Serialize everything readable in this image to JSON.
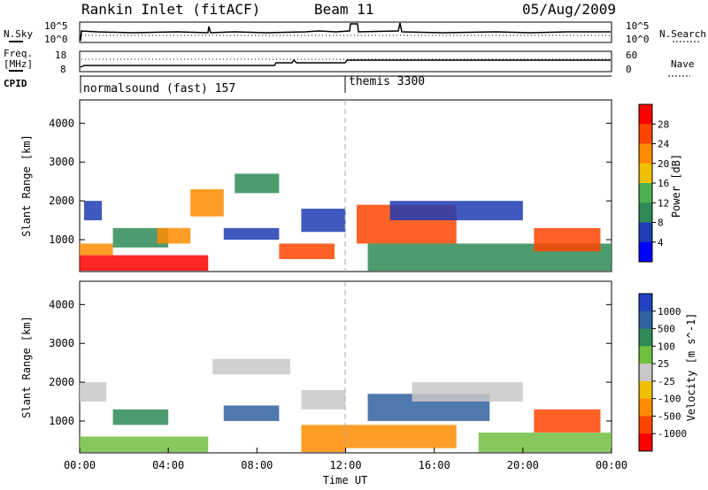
{
  "header": {
    "title": "Rankin Inlet (fitACF)",
    "beam": "Beam 11",
    "date": "05/Aug/2009"
  },
  "top_panels": {
    "left_labels": [
      "N.Sky",
      "Freq.",
      "[MHz]",
      "CPID"
    ],
    "right_labels": [
      "N.Search",
      "Nave"
    ],
    "noise_ticks": [
      "10^5",
      "10^0"
    ],
    "noise_right_ticks": [
      "10^5",
      "10^0"
    ],
    "freq_ticks": [
      "18",
      "8"
    ],
    "nave_ticks": [
      "60",
      "0"
    ],
    "cpid_segments": [
      {
        "label": "normalsound (fast) 157",
        "start_hour": 0
      },
      {
        "label": "themis 3300",
        "start_hour": 12
      }
    ]
  },
  "chart_data": [
    {
      "type": "heatmap",
      "title": "",
      "xlabel": "",
      "ylabel": "Slant Range [km]",
      "xlim": [
        0,
        24
      ],
      "ylim": [
        180,
        4600
      ],
      "yticks": [
        1000,
        2000,
        3000,
        4000
      ],
      "colorbar": {
        "label": "Power [dB]",
        "ticks": [
          "28",
          "24",
          "20",
          "16",
          "12",
          "8",
          "4"
        ],
        "colors": [
          "#ff0000",
          "#ff4500",
          "#ff8c00",
          "#f0c000",
          "#4caf50",
          "#2e8b57",
          "#1e3cb4",
          "#0000ff"
        ]
      },
      "regions": [
        {
          "x0": 0.0,
          "x1": 5.8,
          "y0": 200,
          "y1": 600,
          "level": 0
        },
        {
          "x0": 0.0,
          "x1": 1.5,
          "y0": 600,
          "y1": 900,
          "level": 2
        },
        {
          "x0": 0.2,
          "x1": 1.0,
          "y0": 1500,
          "y1": 2000,
          "level": 6
        },
        {
          "x0": 1.5,
          "x1": 4.0,
          "y0": 800,
          "y1": 1300,
          "level": 5
        },
        {
          "x0": 3.5,
          "x1": 5.0,
          "y0": 900,
          "y1": 1300,
          "level": 2
        },
        {
          "x0": 5.0,
          "x1": 6.5,
          "y0": 1600,
          "y1": 2300,
          "level": 2
        },
        {
          "x0": 6.5,
          "x1": 9.0,
          "y0": 1000,
          "y1": 1300,
          "level": 6
        },
        {
          "x0": 7.0,
          "x1": 9.0,
          "y0": 2200,
          "y1": 2700,
          "level": 5
        },
        {
          "x0": 9.0,
          "x1": 11.5,
          "y0": 500,
          "y1": 900,
          "level": 1
        },
        {
          "x0": 10.0,
          "x1": 12.0,
          "y0": 1200,
          "y1": 1800,
          "level": 6
        },
        {
          "x0": 12.5,
          "x1": 17.0,
          "y0": 900,
          "y1": 1900,
          "level": 1
        },
        {
          "x0": 14.0,
          "x1": 20.0,
          "y0": 1500,
          "y1": 2000,
          "level": 6
        },
        {
          "x0": 13.0,
          "x1": 24.0,
          "y0": 200,
          "y1": 900,
          "level": 5
        },
        {
          "x0": 20.5,
          "x1": 23.5,
          "y0": 700,
          "y1": 1300,
          "level": 1
        }
      ]
    },
    {
      "type": "heatmap",
      "title": "",
      "xlabel": "Time UT",
      "ylabel": "Slant Range [km]",
      "xlim": [
        0,
        24
      ],
      "ylim": [
        180,
        4600
      ],
      "yticks": [
        1000,
        2000,
        3000,
        4000
      ],
      "xticks": [
        "00:00",
        "04:00",
        "08:00",
        "12:00",
        "16:00",
        "20:00",
        "00:00"
      ],
      "colorbar": {
        "label": "Velocity [m s^-1]",
        "ticks": [
          "1000",
          "500",
          "100",
          "25",
          "-25",
          "-100",
          "-500",
          "-1000"
        ],
        "colors": [
          "#2040c0",
          "#3060a0",
          "#2e8b57",
          "#70c040",
          "#c8c8c8",
          "#f0c000",
          "#ff8c00",
          "#ff4500",
          "#ff0000"
        ]
      },
      "regions": [
        {
          "x0": 0.0,
          "x1": 5.8,
          "y0": 200,
          "y1": 600,
          "level": 3
        },
        {
          "x0": 0.0,
          "x1": 1.2,
          "y0": 1500,
          "y1": 2000,
          "level": 4
        },
        {
          "x0": 1.5,
          "x1": 4.0,
          "y0": 900,
          "y1": 1300,
          "level": 2
        },
        {
          "x0": 6.5,
          "x1": 9.0,
          "y0": 1000,
          "y1": 1400,
          "level": 1
        },
        {
          "x0": 6.0,
          "x1": 9.5,
          "y0": 2200,
          "y1": 2600,
          "level": 4
        },
        {
          "x0": 10.0,
          "x1": 12.0,
          "y0": 200,
          "y1": 900,
          "level": 6
        },
        {
          "x0": 10.0,
          "x1": 12.0,
          "y0": 1300,
          "y1": 1800,
          "level": 4
        },
        {
          "x0": 12.0,
          "x1": 17.0,
          "y0": 300,
          "y1": 900,
          "level": 6
        },
        {
          "x0": 13.0,
          "x1": 18.5,
          "y0": 1000,
          "y1": 1700,
          "level": 1
        },
        {
          "x0": 15.0,
          "x1": 20.0,
          "y0": 1500,
          "y1": 2000,
          "level": 4
        },
        {
          "x0": 20.5,
          "x1": 23.5,
          "y0": 700,
          "y1": 1300,
          "level": 7
        },
        {
          "x0": 18.0,
          "x1": 24.0,
          "y0": 200,
          "y1": 700,
          "level": 3
        }
      ]
    }
  ]
}
